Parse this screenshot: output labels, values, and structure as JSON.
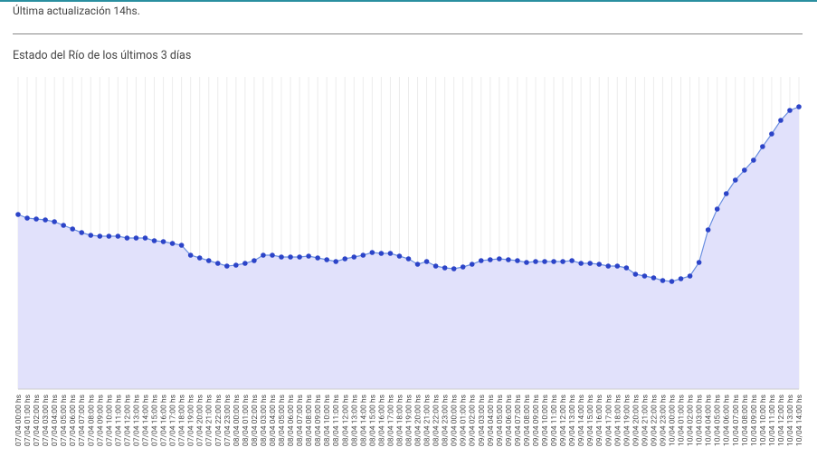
{
  "header": {
    "update": "Última actualización 14hs."
  },
  "chart_data": {
    "type": "area",
    "title": "Estado del Río de los últimos 3 días",
    "categories": [
      "07/04 00:00 hs",
      "07/04 01:00 hs",
      "07/04 02:00 hs",
      "07/04 03:00 hs",
      "07/04 04:00 hs",
      "07/04 05:00 hs",
      "07/04 06:00 hs",
      "07/04 07:00 hs",
      "07/04 08:00 hs",
      "07/04 09:00 hs",
      "07/04 10:00 hs",
      "07/04 11:00 hs",
      "07/04 12:00 hs",
      "07/04 13:00 hs",
      "07/04 14:00 hs",
      "07/04 15:00 hs",
      "07/04 16:00 hs",
      "07/04 17:00 hs",
      "07/04 18:00 hs",
      "07/04 19:00 hs",
      "07/04 20:00 hs",
      "07/04 21:00 hs",
      "07/04 22:00 hs",
      "07/04 23:00 hs",
      "08/04 00:00 hs",
      "08/04 01:00 hs",
      "08/04 02:00 hs",
      "08/04 03:00 hs",
      "08/04 04:00 hs",
      "08/04 05:00 hs",
      "08/04 06:00 hs",
      "08/04 07:00 hs",
      "08/04 08:00 hs",
      "08/04 09:00 hs",
      "08/04 10:00 hs",
      "08/04 11:00 hs",
      "08/04 12:00 hs",
      "08/04 13:00 hs",
      "08/04 14:00 hs",
      "08/04 15:00 hs",
      "08/04 16:00 hs",
      "08/04 17:00 hs",
      "08/04 18:00 hs",
      "08/04 19:00 hs",
      "08/04 20:00 hs",
      "08/04 21:00 hs",
      "08/04 22:00 hs",
      "08/04 23:00 hs",
      "09/04 00:00 hs",
      "09/04 01:00 hs",
      "09/04 02:00 hs",
      "09/04 03:00 hs",
      "09/04 04:00 hs",
      "09/04 05:00 hs",
      "09/04 06:00 hs",
      "09/04 07:00 hs",
      "09/04 08:00 hs",
      "09/04 09:00 hs",
      "09/04 10:00 hs",
      "09/04 11:00 hs",
      "09/04 12:00 hs",
      "09/04 13:00 hs",
      "09/04 14:00 hs",
      "09/04 15:00 hs",
      "09/04 16:00 hs",
      "09/04 17:00 hs",
      "09/04 18:00 hs",
      "09/04 19:00 hs",
      "09/04 20:00 hs",
      "09/04 21:00 hs",
      "09/04 22:00 hs",
      "09/04 23:00 hs",
      "10/04 00:00 hs",
      "10/04 01:00 hs",
      "10/04 02:00 hs",
      "10/04 03:00 hs",
      "10/04 04:00 hs",
      "10/04 05:00 hs",
      "10/04 06:00 hs",
      "10/04 07:00 hs",
      "10/04 08:00 hs",
      "10/04 09:00 hs",
      "10/04 10:00 hs",
      "10/04 11:00 hs",
      "10/04 12:00 hs",
      "10/04 13:00 hs",
      "10/04 14:00 hs"
    ],
    "values": [
      193,
      189,
      188,
      187,
      185,
      181,
      177,
      173,
      170,
      169,
      169,
      169,
      167,
      167,
      167,
      164,
      163,
      161,
      159,
      148,
      145,
      142,
      139,
      136,
      137,
      139,
      142,
      148,
      148,
      146,
      146,
      146,
      147,
      145,
      143,
      141,
      144,
      146,
      148,
      151,
      150,
      150,
      147,
      144,
      138,
      141,
      136,
      134,
      133,
      135,
      138,
      142,
      143,
      144,
      143,
      142,
      140,
      141,
      141,
      141,
      141,
      142,
      139,
      139,
      138,
      136,
      136,
      134,
      127,
      125,
      123,
      120,
      119,
      122,
      125,
      140,
      176,
      199,
      216,
      231,
      242,
      253,
      268,
      282,
      297,
      308,
      312
    ],
    "color": "#2c44c8",
    "fill": "#e1e1fb",
    "line_color": "#6a8fe0",
    "ylim": [
      0,
      345
    ],
    "grid": true
  }
}
